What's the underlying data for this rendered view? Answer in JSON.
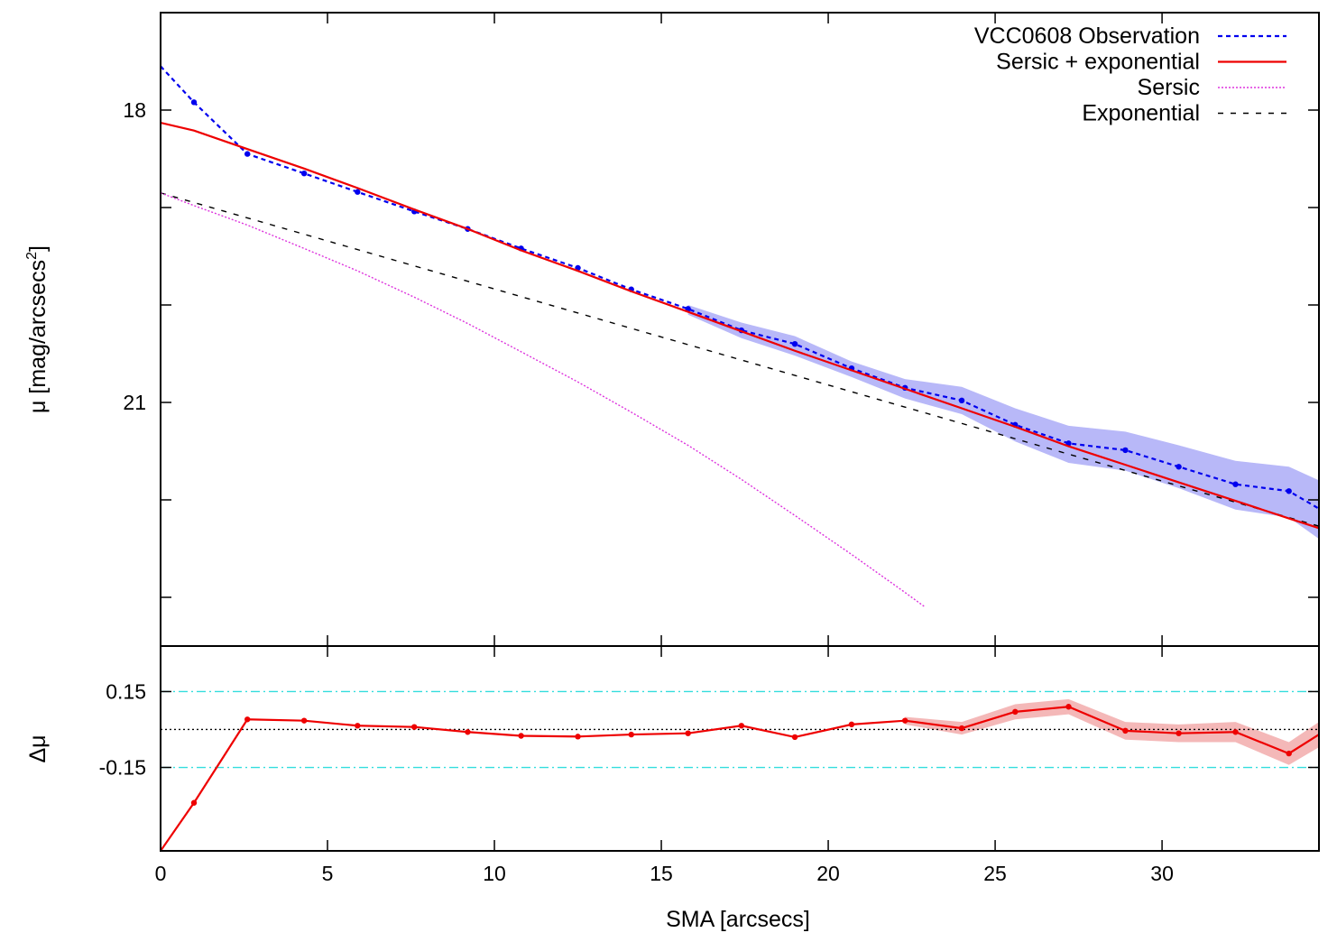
{
  "chart_data": [
    {
      "type": "line",
      "panel": "profile",
      "ylabel": "μ [mag/arcsecs",
      "ylabel_sup": "2",
      "ylabel_close": "]",
      "xlim": [
        0,
        34.7
      ],
      "ylim": [
        23.5,
        17.0
      ],
      "y_inverted": true,
      "yticks": [
        18,
        21
      ],
      "ytick_labels": [
        "18",
        "21"
      ],
      "y_minor_ticks": [
        17,
        19,
        20,
        22,
        23
      ],
      "legend": "top-right",
      "series": [
        {
          "name": "VCC0608 Observation",
          "style": "dashed-points",
          "color": "#0000ee",
          "x": [
            0.0,
            1.0,
            2.6,
            4.3,
            5.9,
            7.6,
            9.2,
            10.8,
            12.5,
            14.1,
            15.8,
            17.4,
            19.0,
            20.7,
            22.3,
            24.0,
            25.6,
            27.2,
            28.9,
            30.5,
            32.2,
            33.8,
            34.7
          ],
          "y": [
            17.55,
            17.92,
            18.45,
            18.65,
            18.84,
            19.04,
            19.22,
            19.42,
            19.62,
            19.84,
            20.04,
            20.26,
            20.4,
            20.65,
            20.85,
            20.98,
            21.23,
            21.42,
            21.49,
            21.66,
            21.84,
            21.91,
            22.09
          ],
          "band": {
            "color": "#b8b8f8",
            "x": [
              15.8,
              17.4,
              19.0,
              20.7,
              22.3,
              24.0,
              25.6,
              27.2,
              28.9,
              30.5,
              32.2,
              33.8,
              34.7
            ],
            "lower": [
              20.0,
              20.18,
              20.32,
              20.58,
              20.76,
              20.84,
              21.06,
              21.24,
              21.3,
              21.44,
              21.6,
              21.66,
              21.8
            ],
            "upper": [
              20.1,
              20.34,
              20.52,
              20.74,
              20.96,
              21.12,
              21.4,
              21.62,
              21.7,
              21.88,
              22.1,
              22.18,
              22.4
            ]
          }
        },
        {
          "name": "Sersic + exponential",
          "style": "solid",
          "color": "#ee0000",
          "x": [
            0.0,
            1.0,
            2.6,
            4.3,
            5.9,
            7.6,
            9.2,
            10.8,
            12.5,
            14.1,
            15.8,
            17.4,
            19.0,
            20.7,
            22.3,
            24.0,
            25.6,
            27.2,
            28.9,
            30.5,
            32.2,
            33.8,
            34.7
          ],
          "y": [
            18.13,
            18.21,
            18.4,
            18.6,
            18.8,
            19.02,
            19.22,
            19.44,
            19.65,
            19.86,
            20.07,
            20.27,
            20.47,
            20.67,
            20.86,
            21.06,
            21.25,
            21.45,
            21.64,
            21.82,
            22.01,
            22.19,
            22.29
          ]
        },
        {
          "name": "Sersic",
          "style": "dotted",
          "color": "#dd33dd",
          "x": [
            0.0,
            1.0,
            2.6,
            4.3,
            5.9,
            7.6,
            9.2,
            10.8,
            12.5,
            14.1,
            15.8,
            17.4,
            19.0,
            20.7,
            22.3,
            22.9
          ],
          "y": [
            18.85,
            18.98,
            19.18,
            19.42,
            19.65,
            19.92,
            20.19,
            20.48,
            20.79,
            21.1,
            21.44,
            21.79,
            22.16,
            22.56,
            22.95,
            23.1
          ]
        },
        {
          "name": "Exponential",
          "style": "dashed",
          "color": "#000000",
          "x": [
            0.0,
            34.7
          ],
          "y": [
            18.85,
            22.27
          ]
        }
      ]
    },
    {
      "type": "line",
      "panel": "residual",
      "xlabel": "SMA [arcsecs]",
      "ylabel": "Δμ",
      "xlim": [
        0,
        34.7
      ],
      "ylim": [
        -0.48,
        0.33
      ],
      "xticks": [
        0,
        5,
        10,
        15,
        20,
        25,
        30
      ],
      "xtick_labels": [
        "0",
        "5",
        "10",
        "15",
        "20",
        "25",
        "30"
      ],
      "yticks": [
        0.15,
        -0.15
      ],
      "ytick_labels": [
        "0.15",
        "-0.15"
      ],
      "reference_lines": [
        {
          "y": 0.15,
          "style": "dash-dot",
          "color": "#33dddd"
        },
        {
          "y": -0.15,
          "style": "dash-dot",
          "color": "#33dddd"
        },
        {
          "y": 0.0,
          "style": "dotted",
          "color": "#000000"
        }
      ],
      "series": [
        {
          "style": "solid-points",
          "color": "#ee0000",
          "x": [
            0.0,
            1.0,
            2.6,
            4.3,
            5.9,
            7.6,
            9.2,
            10.8,
            12.5,
            14.1,
            15.8,
            17.4,
            19.0,
            20.7,
            22.3,
            24.0,
            25.6,
            27.2,
            28.9,
            30.5,
            32.2,
            33.8,
            34.7
          ],
          "y": [
            -0.48,
            -0.29,
            0.04,
            0.035,
            0.015,
            0.01,
            -0.01,
            -0.025,
            -0.028,
            -0.02,
            -0.015,
            0.015,
            -0.03,
            0.02,
            0.035,
            0.005,
            0.07,
            0.09,
            -0.005,
            -0.015,
            -0.01,
            -0.095,
            -0.02
          ],
          "band": {
            "color": "#f4b8b8",
            "x": [
              22.3,
              24.0,
              25.6,
              27.2,
              28.9,
              30.5,
              32.2,
              33.8,
              34.7
            ],
            "lower": [
              0.02,
              -0.02,
              0.04,
              0.06,
              -0.04,
              -0.05,
              -0.05,
              -0.14,
              -0.07
            ],
            "upper": [
              0.05,
              0.03,
              0.1,
              0.12,
              0.03,
              0.02,
              0.03,
              -0.05,
              0.03
            ]
          }
        }
      ]
    }
  ]
}
